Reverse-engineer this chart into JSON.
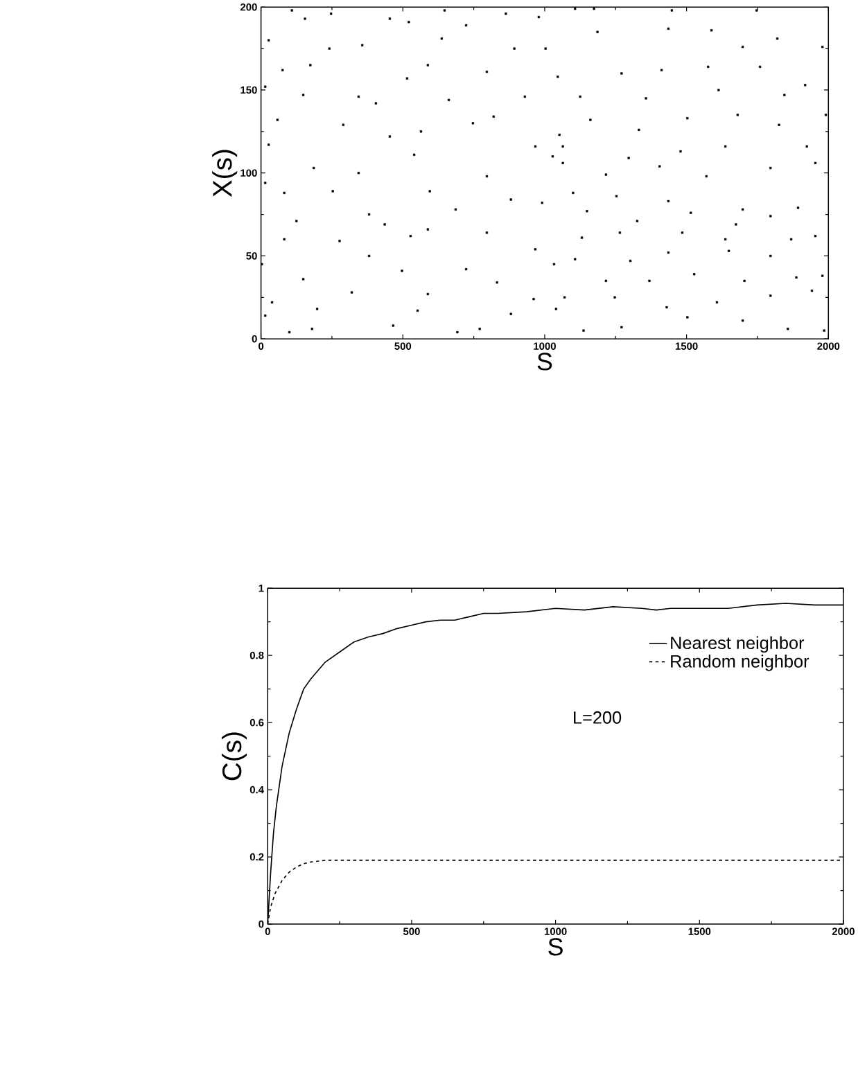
{
  "chart_data": [
    {
      "type": "scatter",
      "xlabel": "S",
      "ylabel": "X(s)",
      "color": "#000000",
      "marker": "square",
      "xlim": [
        0,
        2000
      ],
      "ylim": [
        0,
        200
      ],
      "xticks": [
        0,
        500,
        1000,
        1500,
        2000
      ],
      "yticks": [
        0,
        50,
        100,
        150,
        200
      ],
      "x": [
        109,
        247,
        454,
        647,
        863,
        979,
        155,
        521,
        723,
        27,
        357,
        637,
        1003,
        241,
        893,
        174,
        588,
        796,
        76,
        515,
        930,
        15,
        149,
        344,
        662,
        820,
        58,
        405,
        564,
        747,
        1052,
        27,
        290,
        454,
        967,
        186,
        344,
        540,
        796,
        1028,
        15,
        253,
        595,
        881,
        82,
        381,
        686,
        991,
        125,
        436,
        588,
        796,
        82,
        277,
        527,
        967,
        3,
        381,
        723,
        149,
        497,
        832,
        320,
        588,
        961,
        39,
        198,
        552,
        881,
        15,
        180,
        466,
        771,
        100,
        692,
        1040,
        1107,
        1174,
        1448,
        1747,
        1186,
        1436,
        1588,
        1698,
        1820,
        1979,
        1046,
        1271,
        1412,
        1576,
        1759,
        1918,
        1125,
        1357,
        1613,
        1845,
        1161,
        1332,
        1503,
        1680,
        1826,
        1991,
        1064,
        1296,
        1479,
        1637,
        1924,
        1064,
        1216,
        1405,
        1570,
        1796,
        1954,
        1100,
        1253,
        1436,
        1698,
        1893,
        1149,
        1326,
        1515,
        1674,
        1796,
        1131,
        1265,
        1485,
        1637,
        1869,
        1954,
        1107,
        1302,
        1436,
        1649,
        1796,
        1033,
        1216,
        1369,
        1527,
        1704,
        1887,
        1979,
        1070,
        1247,
        1430,
        1607,
        1796,
        1942,
        1137,
        1271,
        1503,
        1698,
        1857,
        1985
      ],
      "values": [
        198,
        196,
        193,
        198,
        196,
        194,
        193,
        191,
        189,
        180,
        177,
        181,
        175,
        175,
        175,
        165,
        165,
        161,
        162,
        157,
        146,
        152,
        147,
        146,
        144,
        134,
        132,
        142,
        125,
        130,
        123,
        117,
        129,
        122,
        116,
        103,
        100,
        111,
        98,
        110,
        94,
        89,
        89,
        84,
        88,
        75,
        78,
        82,
        71,
        69,
        66,
        64,
        60,
        59,
        62,
        54,
        45,
        50,
        42,
        36,
        41,
        34,
        28,
        27,
        24,
        22,
        18,
        17,
        15,
        14,
        6,
        8,
        6,
        4,
        4,
        18,
        199,
        199,
        198,
        198,
        185,
        187,
        186,
        176,
        181,
        176,
        158,
        160,
        162,
        164,
        164,
        153,
        146,
        145,
        150,
        147,
        132,
        126,
        133,
        135,
        129,
        135,
        116,
        109,
        113,
        116,
        116,
        106,
        99,
        104,
        98,
        103,
        106,
        88,
        86,
        83,
        78,
        79,
        77,
        71,
        76,
        69,
        74,
        61,
        64,
        64,
        60,
        60,
        62,
        48,
        47,
        52,
        53,
        50,
        45,
        35,
        35,
        39,
        35,
        37,
        38,
        25,
        25,
        19,
        22,
        26,
        29,
        5,
        7,
        13,
        11,
        6,
        5
      ]
    },
    {
      "type": "line",
      "xlabel": "S",
      "ylabel": "C(s)",
      "legend": "top right",
      "annotations": [
        "L=200"
      ],
      "xlim": [
        0,
        2000
      ],
      "ylim": [
        0,
        1
      ],
      "xticks": [
        0,
        500,
        1000,
        1500,
        2000
      ],
      "yticks": [
        0,
        0.2,
        0.4,
        0.6,
        0.8,
        1
      ],
      "series": [
        {
          "name": "Nearest neighbor",
          "color": "#000000",
          "line_style": "solid",
          "x": [
            0,
            10,
            20,
            30,
            50,
            75,
            100,
            125,
            150,
            200,
            250,
            300,
            350,
            400,
            450,
            500,
            550,
            600,
            650,
            700,
            750,
            800,
            900,
            1000,
            1100,
            1200,
            1300,
            1350,
            1400,
            1500,
            1600,
            1700,
            1800,
            1900,
            2000
          ],
          "values": [
            0,
            0.15,
            0.27,
            0.35,
            0.47,
            0.57,
            0.64,
            0.7,
            0.73,
            0.78,
            0.81,
            0.84,
            0.855,
            0.865,
            0.88,
            0.89,
            0.9,
            0.905,
            0.905,
            0.915,
            0.925,
            0.925,
            0.93,
            0.94,
            0.935,
            0.945,
            0.94,
            0.935,
            0.94,
            0.94,
            0.94,
            0.95,
            0.955,
            0.95,
            0.95
          ]
        },
        {
          "name": "Random neighbor",
          "color": "#000000",
          "line_style": "dashed",
          "x": [
            0,
            10,
            25,
            50,
            75,
            100,
            125,
            150,
            200,
            300,
            500,
            750,
            1000,
            1250,
            1500,
            1750,
            2000
          ],
          "values": [
            0,
            0.05,
            0.09,
            0.13,
            0.155,
            0.17,
            0.18,
            0.185,
            0.19,
            0.19,
            0.19,
            0.19,
            0.19,
            0.19,
            0.19,
            0.19,
            0.19
          ]
        }
      ]
    }
  ]
}
